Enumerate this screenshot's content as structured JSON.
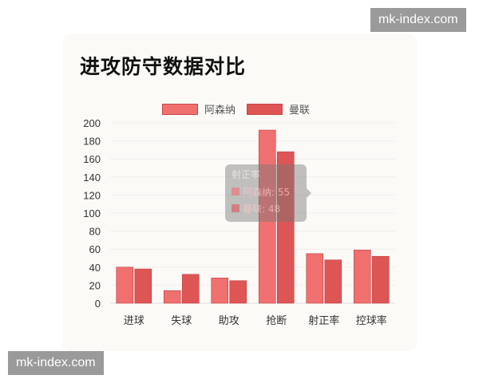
{
  "watermarks": [
    "mk-index.com",
    "mk-index.com"
  ],
  "chart_data": {
    "type": "bar",
    "title": "进攻防守数据对比",
    "categories": [
      "进球",
      "失球",
      "助攻",
      "抢断",
      "射正率",
      "控球率"
    ],
    "series": [
      {
        "name": "阿森纳",
        "values": [
          40,
          14,
          28,
          192,
          55,
          59
        ],
        "color": "#f07070"
      },
      {
        "name": "曼联",
        "values": [
          38,
          32,
          25,
          168,
          48,
          52
        ],
        "color": "#dd5555"
      }
    ],
    "ylim": [
      0,
      200
    ],
    "yticks": [
      0,
      20,
      40,
      60,
      80,
      100,
      120,
      140,
      160,
      180,
      200
    ],
    "grid": true,
    "legend": "top",
    "tooltip": {
      "title": "射正率",
      "lines": [
        "阿森纳: 55",
        "曼联: 48"
      ]
    }
  }
}
